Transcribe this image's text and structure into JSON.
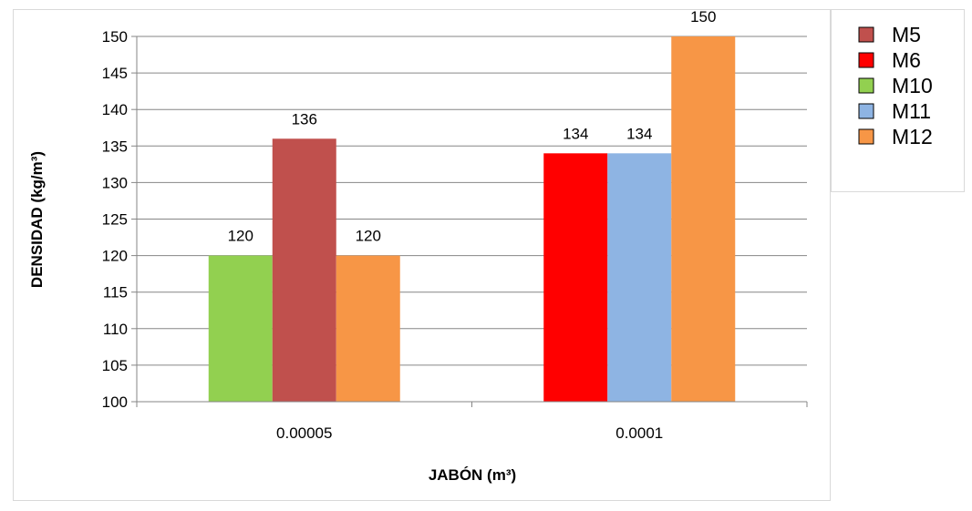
{
  "chart_data": {
    "type": "bar",
    "categories": [
      "0.00005",
      "0.0001"
    ],
    "xlabel": "JABÓN (m³)",
    "ylabel": "DENSIDAD (kg/m³)",
    "ylim": [
      100,
      150
    ],
    "yticks": [
      100,
      105,
      110,
      115,
      120,
      125,
      130,
      135,
      140,
      145,
      150
    ],
    "grid": true,
    "legend_position": "right",
    "series": [
      {
        "name": "M5",
        "color": "#c0504d",
        "values": [
          136,
          null
        ]
      },
      {
        "name": "M6",
        "color": "#ff0000",
        "values": [
          null,
          134
        ]
      },
      {
        "name": "M10",
        "color": "#92d050",
        "values": [
          120,
          null
        ]
      },
      {
        "name": "M11",
        "color": "#8eb4e3",
        "values": [
          null,
          134
        ]
      },
      {
        "name": "M12",
        "color": "#f79646",
        "values": [
          120,
          150
        ]
      }
    ],
    "legend_order": [
      "M5",
      "M6",
      "M10",
      "M11",
      "M12"
    ],
    "legend_swatch_colors": [
      "#c0504d",
      "#ff0000",
      "#92d050",
      "#8eb4e3",
      "#f79646"
    ],
    "category_series_order": [
      [
        "M10",
        "M5",
        "M12"
      ],
      [
        "M6",
        "M11",
        "M12"
      ]
    ]
  }
}
